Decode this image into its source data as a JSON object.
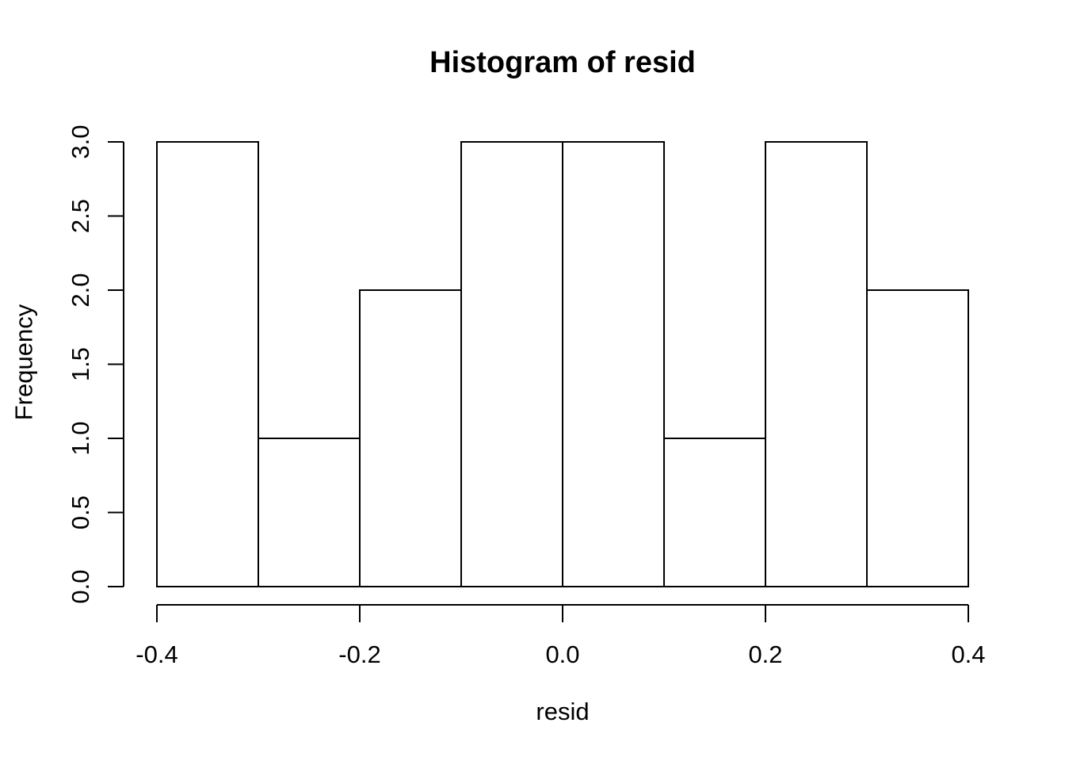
{
  "chart_data": {
    "type": "bar",
    "subtype": "histogram",
    "title": "Histogram of resid",
    "xlabel": "resid",
    "ylabel": "Frequency",
    "xlim": [
      -0.4,
      0.4
    ],
    "ylim": [
      0,
      3
    ],
    "grid": false,
    "legend": null,
    "bins": {
      "breaks": [
        -0.4,
        -0.3,
        -0.2,
        -0.1,
        0.0,
        0.1,
        0.2,
        0.3,
        0.4
      ],
      "counts": [
        3,
        1,
        2,
        3,
        3,
        1,
        3,
        2
      ]
    },
    "x_ticks": [
      {
        "v": -0.4,
        "label": "-0.4"
      },
      {
        "v": -0.2,
        "label": "-0.2"
      },
      {
        "v": 0.0,
        "label": "0.0"
      },
      {
        "v": 0.2,
        "label": "0.2"
      },
      {
        "v": 0.4,
        "label": "0.4"
      }
    ],
    "y_ticks": [
      {
        "v": 0.0,
        "label": "0.0"
      },
      {
        "v": 0.5,
        "label": "0.5"
      },
      {
        "v": 1.0,
        "label": "1.0"
      },
      {
        "v": 1.5,
        "label": "1.5"
      },
      {
        "v": 2.0,
        "label": "2.0"
      },
      {
        "v": 2.5,
        "label": "2.5"
      },
      {
        "v": 3.0,
        "label": "3.0"
      }
    ],
    "style": {
      "bar_fill": "#ffffff",
      "stroke": "#000000",
      "text_color": "#000000",
      "background": "#ffffff"
    }
  }
}
